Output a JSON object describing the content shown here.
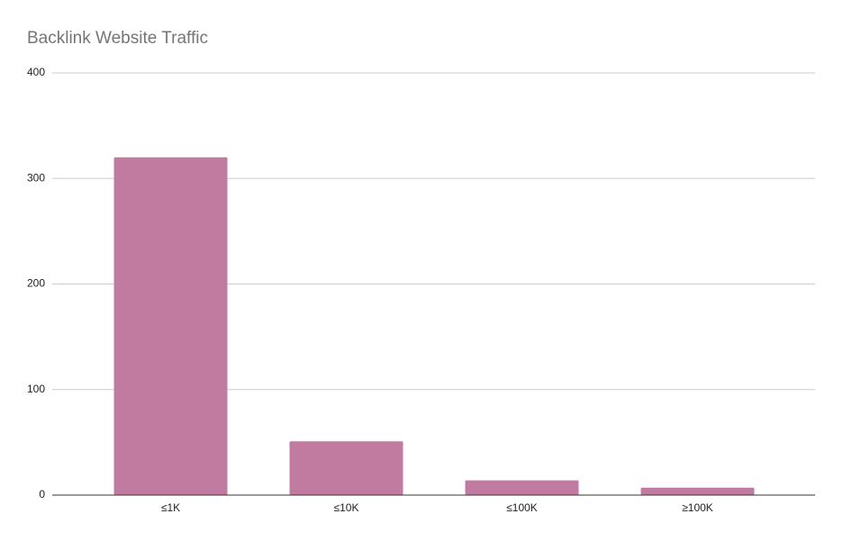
{
  "chart_data": {
    "type": "bar",
    "title": "Backlink Website Traffic",
    "categories": [
      "≤1K",
      "≤10K",
      "≤100K",
      "≥100K"
    ],
    "values": [
      320,
      51,
      14,
      7
    ],
    "color": "#c27ba0",
    "ylim": [
      0,
      400
    ],
    "yticks": [
      0,
      100,
      200,
      300,
      400
    ],
    "grid": true
  }
}
